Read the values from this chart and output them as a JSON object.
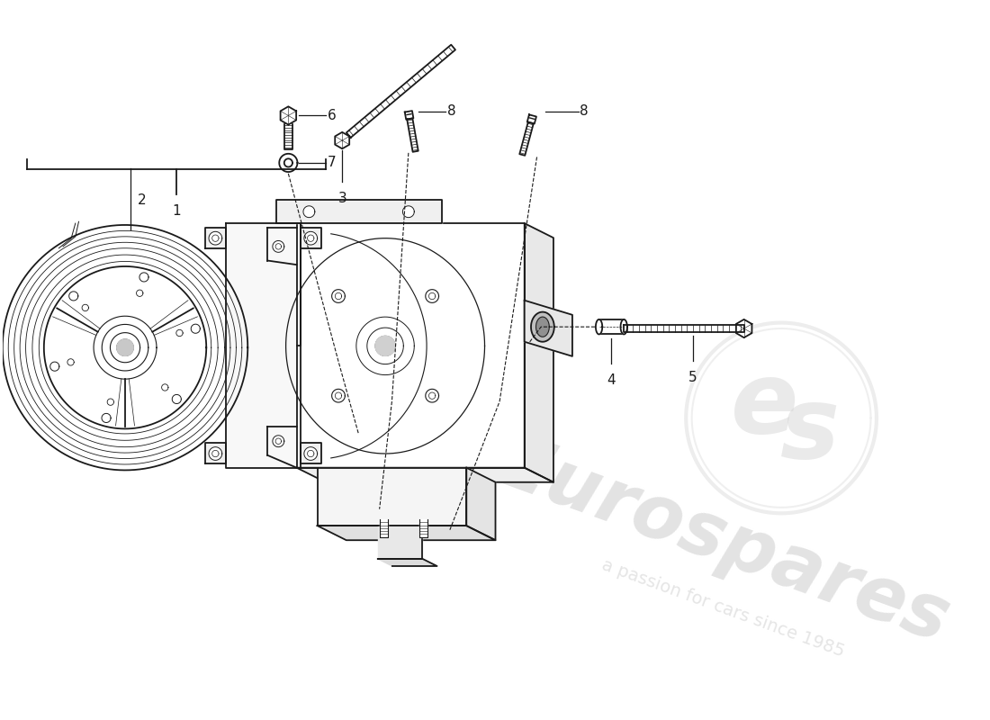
{
  "bg_color": "#ffffff",
  "line_color": "#1a1a1a",
  "watermark_color": "#d5d5d5",
  "watermark_color2": "#c8b870",
  "parts": {
    "1": {
      "label": "1"
    },
    "2": {
      "label": "2"
    },
    "3": {
      "label": "3"
    },
    "4": {
      "label": "4"
    },
    "5": {
      "label": "5"
    },
    "6": {
      "label": "6"
    },
    "7": {
      "label": "7"
    },
    "8a": {
      "label": "8"
    },
    "8b": {
      "label": "8"
    }
  }
}
